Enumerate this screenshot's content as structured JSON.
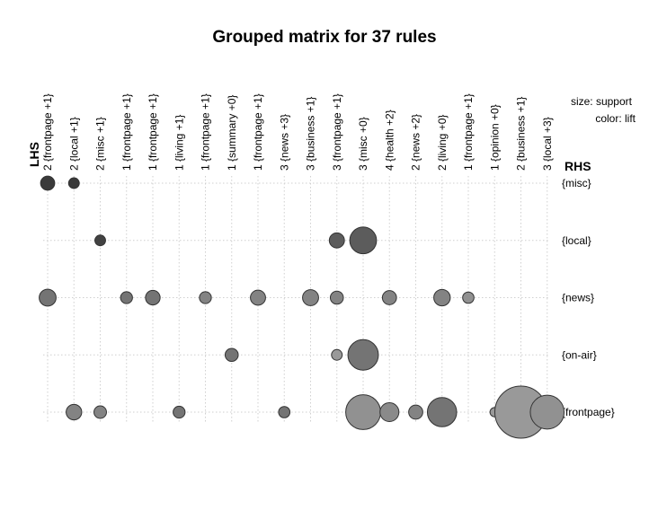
{
  "chart_data": {
    "type": "scatter",
    "title": "Grouped matrix for 37 rules",
    "lhs_axis_label": "LHS",
    "rhs_axis_label": "RHS",
    "legend": {
      "size_label": "size: support",
      "color_label": "color: lift"
    },
    "columns": [
      "2 {frontpage +1}",
      "2 {local +1}",
      "2 {misc +1}",
      "1 {frontpage +1}",
      "1 {frontpage +1}",
      "1 {living +1}",
      "1 {frontpage +1}",
      "1 {summary +0}",
      "1 {frontpage +1}",
      "3 {news +3}",
      "3 {business +1}",
      "3 {frontpage +1}",
      "3 {misc +0}",
      "4 {health +2}",
      "2 {news +2}",
      "2 {living +0}",
      "1 {frontpage +1}",
      "1 {opinion +0}",
      "2 {business +1}",
      "3 {local +3}"
    ],
    "rows": [
      "{misc}",
      "{local}",
      "{news}",
      "{on-air}",
      "{frontpage}"
    ],
    "points": [
      {
        "row": 0,
        "col": 0,
        "support": 0.014,
        "lift": 0.95
      },
      {
        "row": 0,
        "col": 1,
        "support": 0.008,
        "lift": 0.95
      },
      {
        "row": 1,
        "col": 2,
        "support": 0.008,
        "lift": 0.9
      },
      {
        "row": 1,
        "col": 11,
        "support": 0.016,
        "lift": 0.72
      },
      {
        "row": 1,
        "col": 12,
        "support": 0.05,
        "lift": 0.72
      },
      {
        "row": 2,
        "col": 0,
        "support": 0.02,
        "lift": 0.55
      },
      {
        "row": 2,
        "col": 3,
        "support": 0.01,
        "lift": 0.55
      },
      {
        "row": 2,
        "col": 4,
        "support": 0.015,
        "lift": 0.55
      },
      {
        "row": 2,
        "col": 6,
        "support": 0.01,
        "lift": 0.45
      },
      {
        "row": 2,
        "col": 8,
        "support": 0.016,
        "lift": 0.45
      },
      {
        "row": 2,
        "col": 10,
        "support": 0.018,
        "lift": 0.45
      },
      {
        "row": 2,
        "col": 11,
        "support": 0.012,
        "lift": 0.45
      },
      {
        "row": 2,
        "col": 13,
        "support": 0.014,
        "lift": 0.45
      },
      {
        "row": 2,
        "col": 15,
        "support": 0.019,
        "lift": 0.45
      },
      {
        "row": 2,
        "col": 16,
        "support": 0.009,
        "lift": 0.35
      },
      {
        "row": 3,
        "col": 7,
        "support": 0.012,
        "lift": 0.55
      },
      {
        "row": 3,
        "col": 11,
        "support": 0.008,
        "lift": 0.3
      },
      {
        "row": 3,
        "col": 12,
        "support": 0.065,
        "lift": 0.55
      },
      {
        "row": 4,
        "col": 1,
        "support": 0.017,
        "lift": 0.45
      },
      {
        "row": 4,
        "col": 2,
        "support": 0.011,
        "lift": 0.45
      },
      {
        "row": 4,
        "col": 5,
        "support": 0.01,
        "lift": 0.55
      },
      {
        "row": 4,
        "col": 9,
        "support": 0.009,
        "lift": 0.55
      },
      {
        "row": 4,
        "col": 12,
        "support": 0.085,
        "lift": 0.35
      },
      {
        "row": 4,
        "col": 13,
        "support": 0.025,
        "lift": 0.4
      },
      {
        "row": 4,
        "col": 14,
        "support": 0.014,
        "lift": 0.45
      },
      {
        "row": 4,
        "col": 15,
        "support": 0.06,
        "lift": 0.55
      },
      {
        "row": 4,
        "col": 17,
        "support": 0.006,
        "lift": 0.3
      },
      {
        "row": 4,
        "col": 18,
        "support": 0.19,
        "lift": 0.3
      },
      {
        "row": 4,
        "col": 19,
        "support": 0.08,
        "lift": 0.35
      }
    ],
    "grid": true,
    "colors": {
      "low_lift": "#c4c4c4",
      "high_lift": "#333333",
      "stroke": "#333333"
    }
  }
}
